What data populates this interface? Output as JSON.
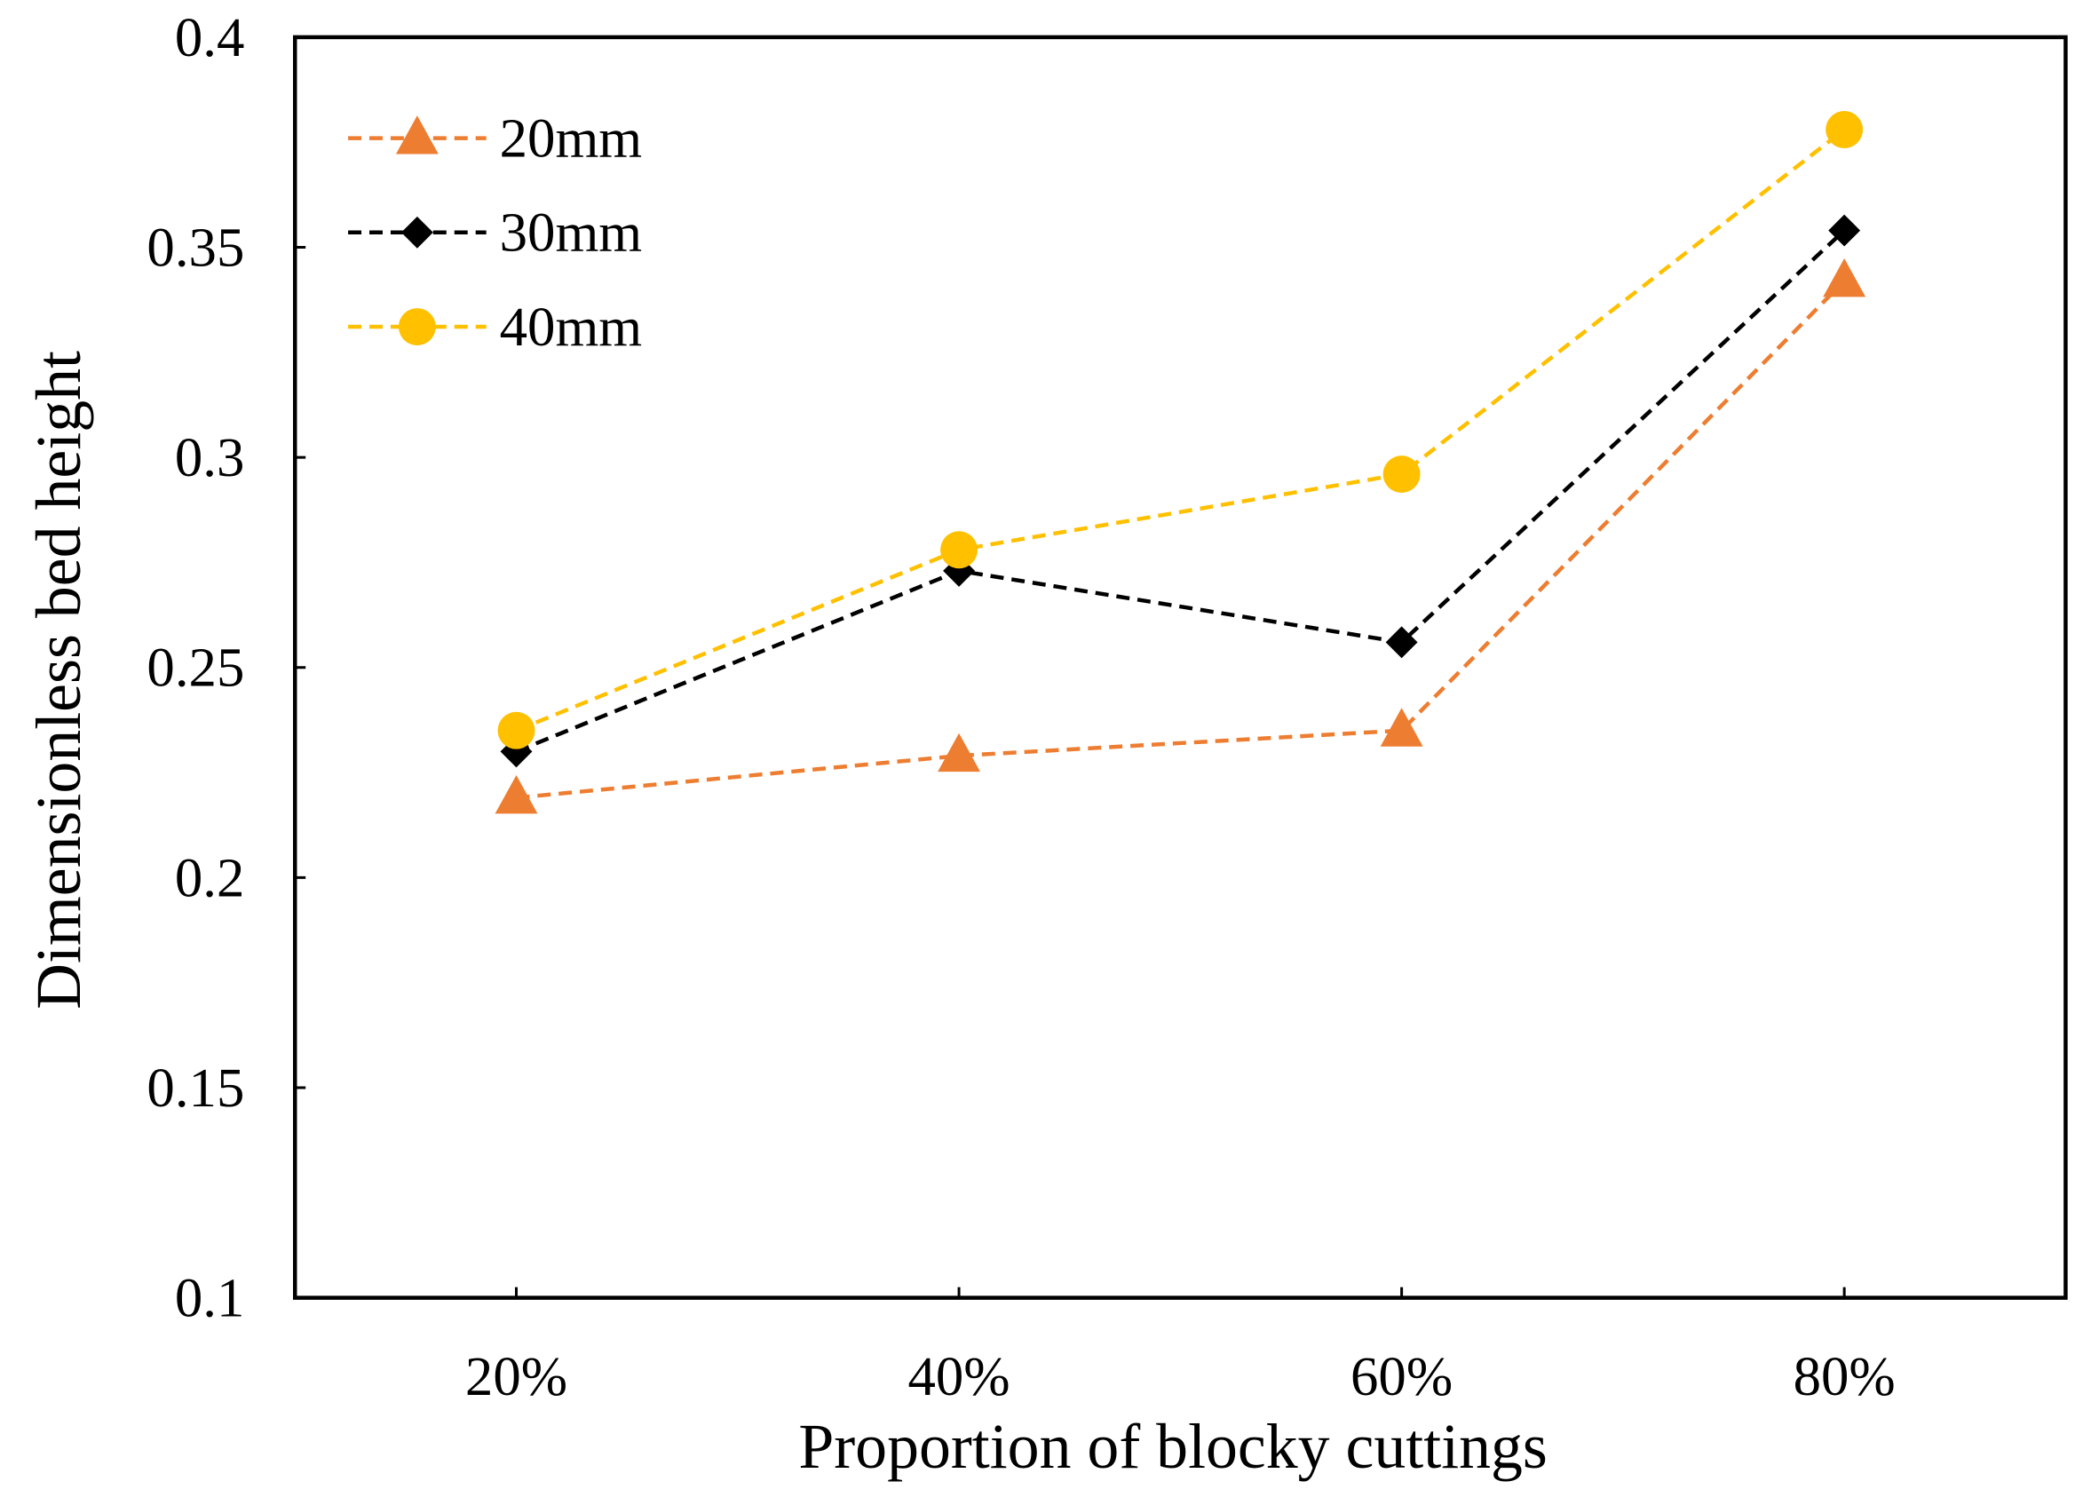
{
  "chart_data": {
    "type": "line",
    "title": "",
    "xlabel": "Proportion of blocky cuttings",
    "ylabel": "Dimensionless bed height",
    "categories": [
      "20%",
      "40%",
      "60%",
      "80%"
    ],
    "ylim": [
      0.1,
      0.4
    ],
    "yticks": [
      "0.1",
      "0.15",
      "0.2",
      "0.25",
      "0.3",
      "0.35",
      "0.4"
    ],
    "ytick_values": [
      0.1,
      0.15,
      0.2,
      0.25,
      0.3,
      0.35,
      0.4
    ],
    "grid": false,
    "legend_position": "top-left",
    "series": [
      {
        "name": "20mm",
        "color": "#ED7D31",
        "marker": "triangle",
        "line": "dashed",
        "values": [
          0.219,
          0.229,
          0.235,
          0.342
        ]
      },
      {
        "name": "30mm",
        "color": "#000000",
        "marker": "diamond",
        "line": "dashed",
        "values": [
          0.23,
          0.273,
          0.256,
          0.354
        ]
      },
      {
        "name": "40mm",
        "color": "#FFC000",
        "marker": "circle",
        "line": "dashed",
        "values": [
          0.235,
          0.278,
          0.296,
          0.378
        ]
      }
    ]
  }
}
